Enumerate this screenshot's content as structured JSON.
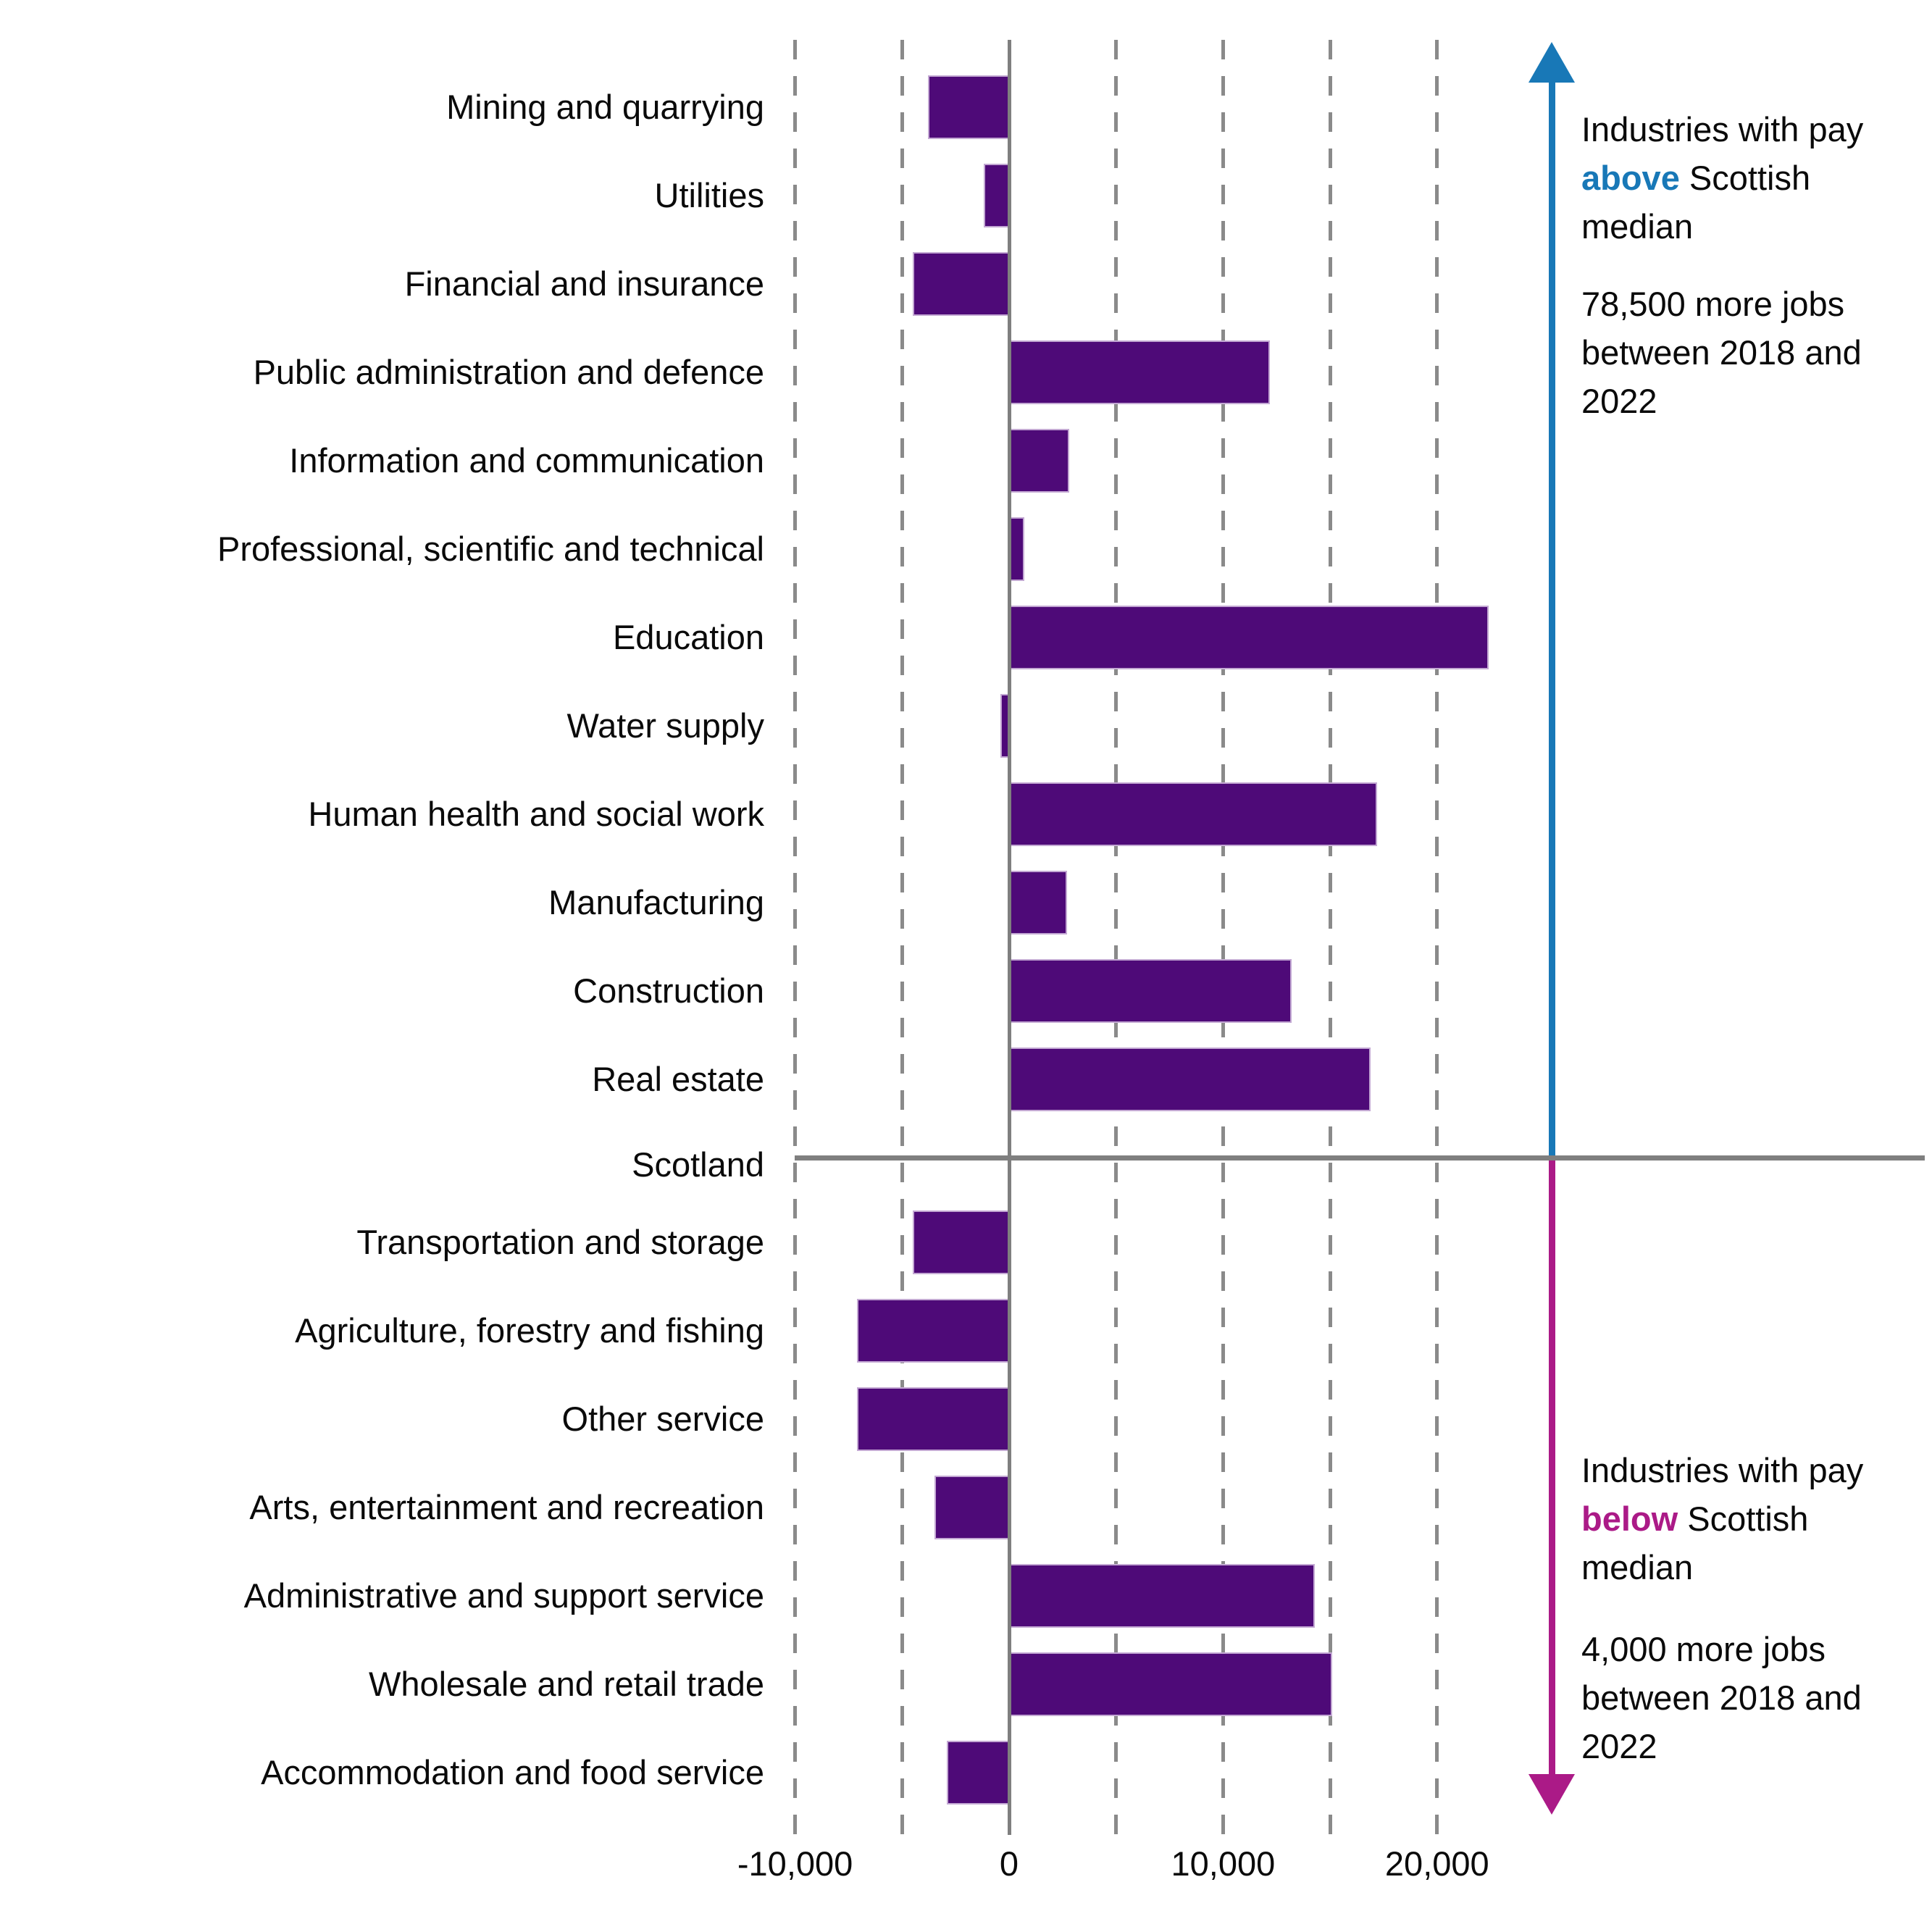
{
  "chart_data": {
    "type": "bar",
    "orientation": "horizontal",
    "title": "",
    "xlabel": "",
    "ylabel": "",
    "categories": [
      "Mining and quarrying",
      "Utilities",
      "Financial and insurance",
      "Public administration and defence",
      "Information and communication",
      "Professional, scientific and technical",
      "Education",
      "Water supply",
      "Human health and social work",
      "Manufacturing",
      "Construction",
      "Real estate",
      "Scotland",
      "Transportation and storage",
      "Agriculture, forestry and fishing",
      "Other service",
      "Arts, entertainment and recreation",
      "Administrative and support service",
      "Wholesale and retail trade",
      "Accommodation and food service"
    ],
    "values": [
      -3800,
      -1200,
      -4500,
      12200,
      2800,
      700,
      22400,
      -400,
      17200,
      2700,
      13200,
      16900,
      0,
      -4500,
      -7100,
      -7100,
      -3500,
      14300,
      15100,
      -2900
    ],
    "separator_index": 12,
    "xlim": [
      -10000,
      25000
    ],
    "gridline_values": [
      -10000,
      -5000,
      0,
      5000,
      10000,
      15000,
      20000
    ],
    "x_ticks": [
      {
        "value": -10000,
        "label": "-10,000"
      },
      {
        "value": 0,
        "label": "0"
      },
      {
        "value": 10000,
        "label": "10,000"
      },
      {
        "value": 20000,
        "label": "20,000"
      }
    ],
    "grid": "dashed-vertical",
    "legend_position": "none",
    "bar_color": "#4e0a78"
  },
  "colors": {
    "bar_purple": "#4e0a78",
    "above_blue": "#1878b7",
    "below_magenta": "#ab1a87",
    "gridline_gray": "#8a8a8a",
    "axis_gray": "#7f7f7f",
    "text": "#0a0a0a"
  },
  "annotations": {
    "above": {
      "line1": "Industries with pay",
      "highlight": "above",
      "line2_rest": " Scottish",
      "line3": "median",
      "stat_line1": "78,500 more jobs",
      "stat_line2": "between 2018 and",
      "stat_line3": "2022"
    },
    "below": {
      "line1": "Industries with pay",
      "highlight": "below",
      "line2_rest": " Scottish",
      "line3": "median",
      "stat_line1": "4,000 more jobs",
      "stat_line2": "between 2018 and",
      "stat_line3": "2022"
    }
  }
}
